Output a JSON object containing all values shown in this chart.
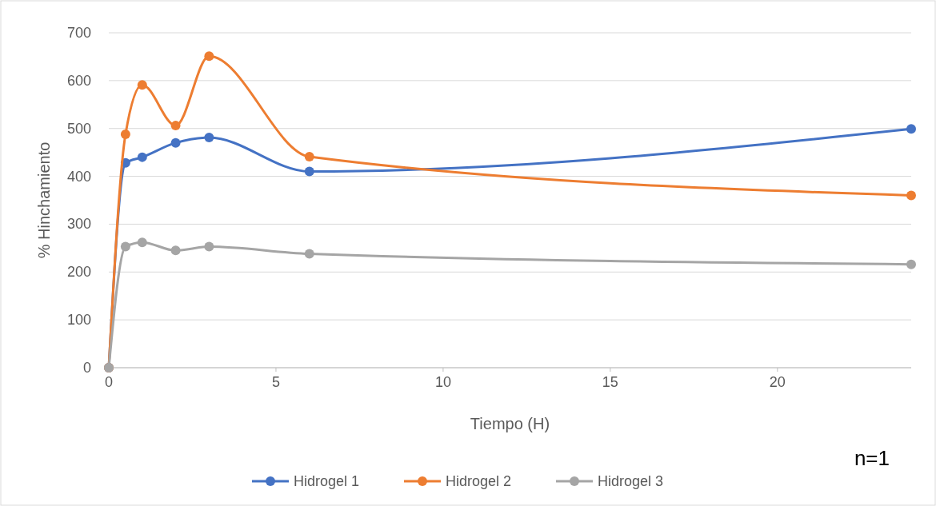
{
  "chart_data": {
    "type": "line",
    "xlabel": "Tiempo (H)",
    "ylabel": "% Hinchamiento",
    "x": [
      0,
      0.5,
      1,
      2,
      3,
      6,
      24
    ],
    "series": [
      {
        "name": "Hidrogel 1",
        "color": "#4472c4",
        "values": [
          0,
          428,
          440,
          470,
          481,
          410,
          499
        ]
      },
      {
        "name": "Hidrogel 2",
        "color": "#ed7d31",
        "values": [
          0,
          488,
          591,
          506,
          651,
          441,
          360
        ]
      },
      {
        "name": "Hidrogel 3",
        "color": "#a5a5a5",
        "values": [
          0,
          253,
          262,
          245,
          253,
          238,
          216
        ]
      }
    ],
    "xlim": [
      0,
      24
    ],
    "xticks": [
      0,
      5,
      10,
      15,
      20
    ],
    "ylim": [
      0,
      700
    ],
    "yticks": [
      0,
      100,
      200,
      300,
      400,
      500,
      600,
      700
    ],
    "grid": "y",
    "legend": "bottom",
    "marker": "circle",
    "line_style": "solid",
    "annotations": [
      "n=1"
    ]
  }
}
